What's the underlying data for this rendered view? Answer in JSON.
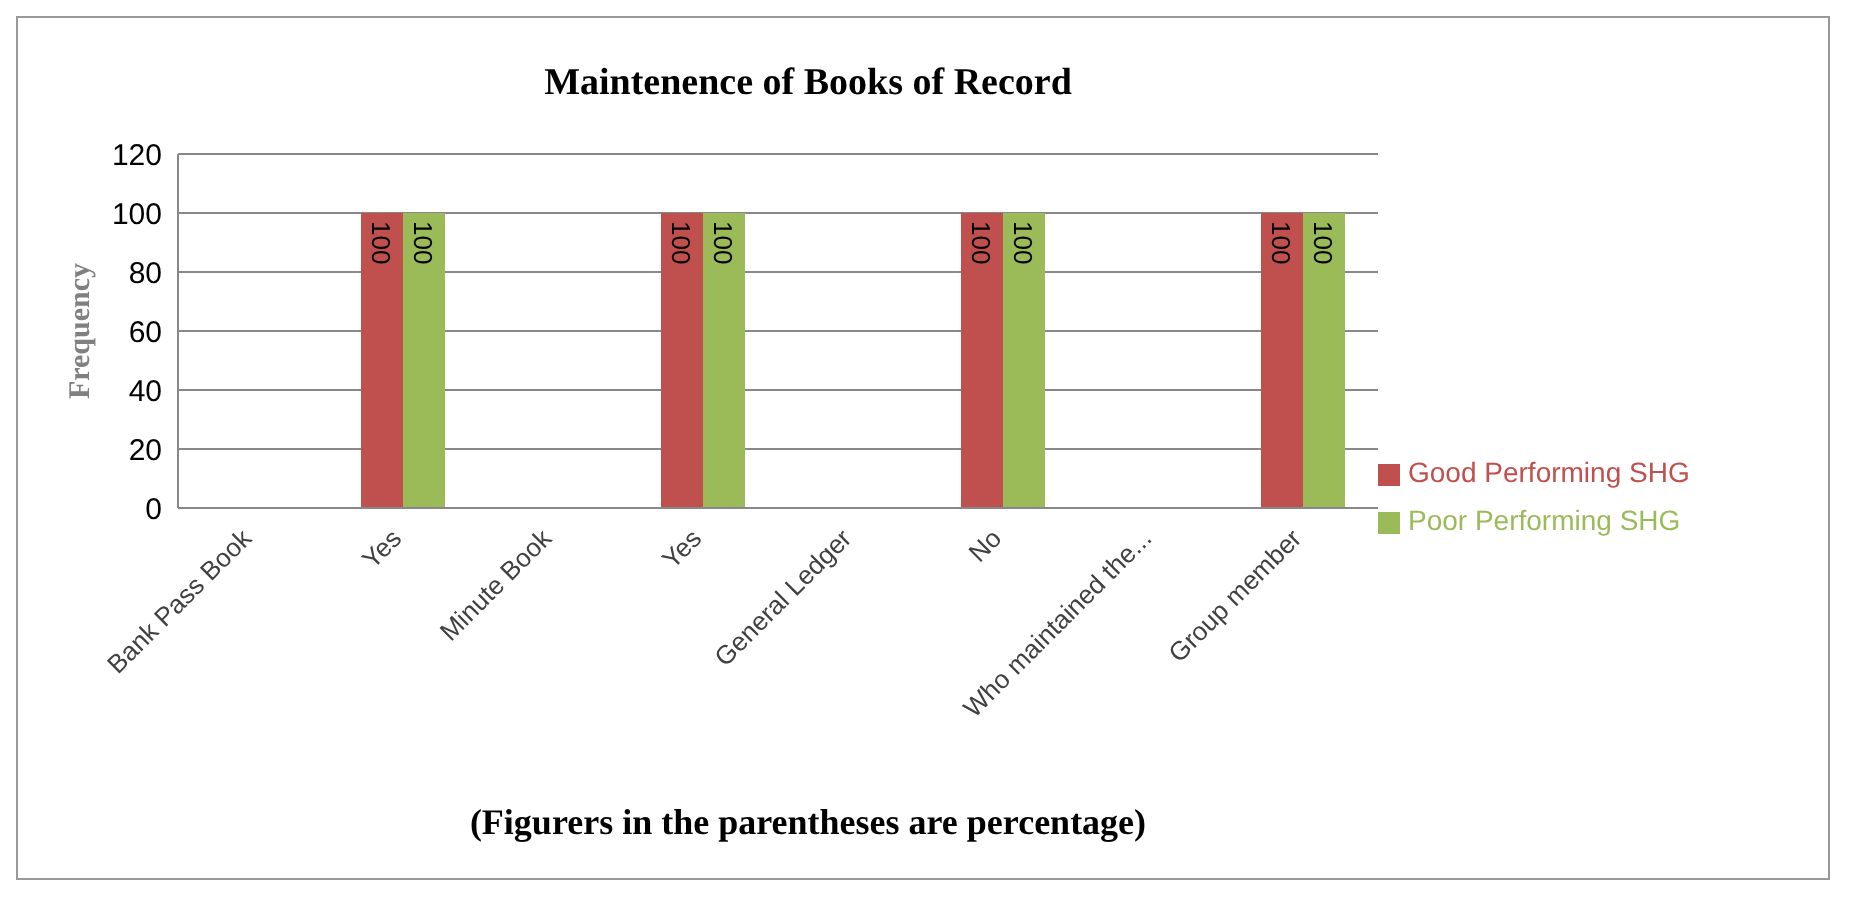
{
  "chart_data": {
    "type": "bar",
    "title": "Maintenence of Books of Record",
    "ylabel": "Frequency",
    "annotations": [
      "(Figurers in the parentheses are percentage)"
    ],
    "categories": [
      "Bank Pass Book",
      "Yes",
      "Minute Book",
      "Yes",
      "General Ledger",
      "No",
      "Who maintained the...",
      "Group member"
    ],
    "series": [
      {
        "name": "Good Performing SHG",
        "color": "#c0504d",
        "values": [
          null,
          100,
          null,
          100,
          null,
          100,
          null,
          100
        ]
      },
      {
        "name": "Poor Performing SHG",
        "color": "#9bbb59",
        "values": [
          null,
          100,
          null,
          100,
          null,
          100,
          null,
          100
        ]
      }
    ],
    "ylim": [
      0,
      120
    ],
    "yticks": [
      0,
      20,
      40,
      60,
      80,
      100,
      120
    ],
    "grid": "y",
    "legend": "right",
    "data_labels": true
  }
}
